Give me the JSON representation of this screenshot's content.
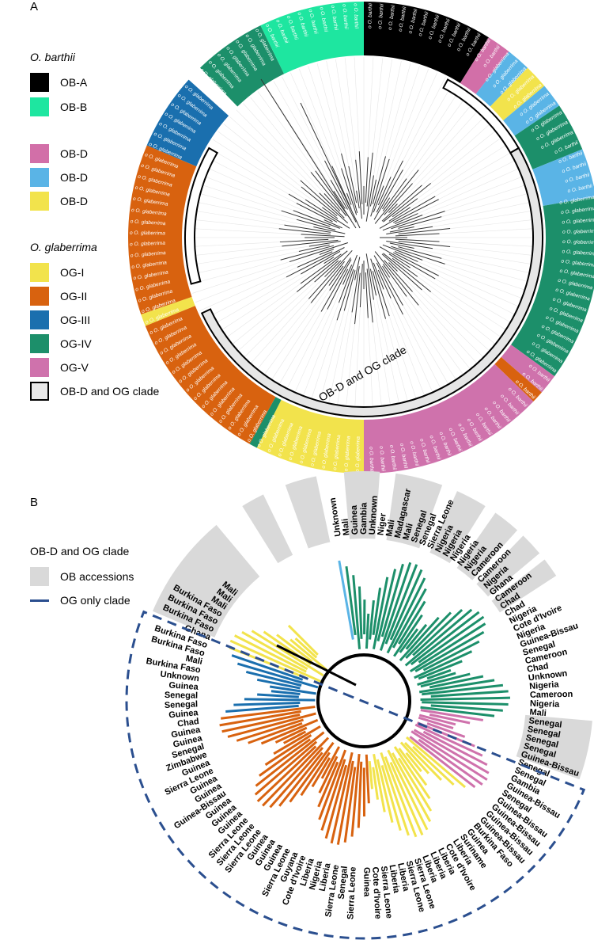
{
  "panel_a": {
    "label": "A",
    "legend": {
      "barthii_header": "O. barthii",
      "glaberrima_header": "O. glaberrima",
      "barthii_items": [
        {
          "label": "OB-A",
          "color": "#000000"
        },
        {
          "label": "OB-B",
          "color": "#1ee6a0"
        },
        {
          "label": "OB-D",
          "color": "#d26fa8"
        },
        {
          "label": "OB-D",
          "color": "#5ab4e6"
        },
        {
          "label": "OB-D",
          "color": "#f2e34c"
        }
      ],
      "glaberrima_items": [
        {
          "label": "OG-I",
          "color": "#f2e34c"
        },
        {
          "label": "OG-II",
          "color": "#d8620f"
        },
        {
          "label": "OG-III",
          "color": "#1a6fae"
        },
        {
          "label": "OG-IV",
          "color": "#1c8f6a"
        },
        {
          "label": "OG-V",
          "color": "#cf72ac"
        }
      ],
      "clade_item": "OB-D and OG clade"
    },
    "arc_label": "OB-D and OG clade",
    "tip_barthii": "O. barthii",
    "tip_glaberrima": "O. glaberrima"
  },
  "panel_b": {
    "label": "B",
    "legend": {
      "clade_title": "OB-D and OG clade",
      "ob_accessions": "OB accessions",
      "og_only_clade": "OG only clade"
    },
    "country_labels": [
      "Unknown",
      "Mali",
      "Guinea",
      "Gambia",
      "Unknown",
      "Niger",
      "Mali",
      "Madagascar",
      "Mali",
      "Senegal",
      "Senegal",
      "Sierra Leone",
      "Nigeria",
      "Nigeria",
      "Nigeria",
      "Nigeria",
      "Nigeria",
      "Cameroon",
      "Cameroon",
      "Nigeria",
      "Ghana",
      "Cameroon",
      "Chad",
      "Chad",
      "Nigeria",
      "Cote d'Ivoire",
      "Nigeria",
      "Guinea-Bissau",
      "Senegal",
      "Cameroon",
      "Chad",
      "Unknown",
      "Nigeria",
      "Cameroon",
      "Nigeria",
      "Mali",
      "Senegal",
      "Senegal",
      "Senegal",
      "Senegal",
      "Guinea-Bissau",
      "Senegal",
      "Senegal",
      "Gambia",
      "Guinea-Bissau",
      "Senegal",
      "Guinea-Bissau",
      "Guinea-Bissau",
      "Guinea-Bissau",
      "Guinea-Bissau",
      "Burkina Faso",
      "Guinea",
      "Suriname",
      "Liberia",
      "Cote d'Ivoire",
      "Liberia",
      "Liberia",
      "Liberia",
      "Sierra Leone",
      "Sierra Leone",
      "Liberia",
      "Liberia",
      "Sierra Leone",
      "Cote d'Ivoire",
      "Guinea",
      "Sierra Leone",
      "Senegal",
      "Sierra Leone",
      "Liberia",
      "Nigeria",
      "Liberia",
      "Cote d'Ivoire",
      "Guyana",
      "Sierra Leone",
      "Guinea",
      "Guinea",
      "Guinea",
      "Sierra Leone",
      "Sierra Leone",
      "Sierra Leone",
      "Guinea",
      "Guinea",
      "Guinea",
      "Guinea-Bissau",
      "Guinea",
      "Guinea",
      "Sierra Leone",
      "Guinea",
      "Zimbabwe",
      "Senegal",
      "Guinea",
      "Guinea",
      "Chad",
      "Guinea",
      "Senegal",
      "Senegal",
      "Guinea",
      "Unknown",
      "Burkina Faso",
      "Mali",
      "Burkina Faso",
      "Burkina Faso",
      "Ghana",
      "Burkina Faso",
      "Burkina Faso",
      "Burkina Faso",
      "Mali",
      "Mali",
      "Mali"
    ]
  }
}
